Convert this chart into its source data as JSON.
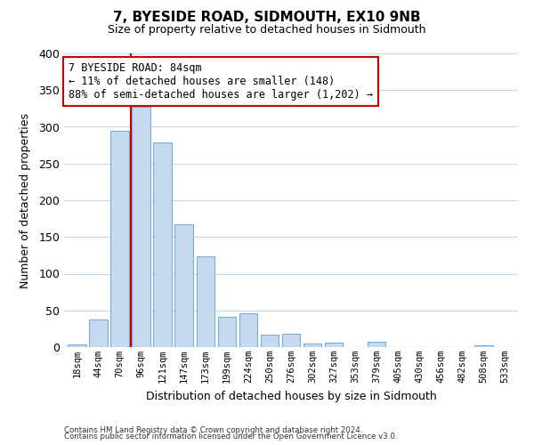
{
  "title": "7, BYESIDE ROAD, SIDMOUTH, EX10 9NB",
  "subtitle": "Size of property relative to detached houses in Sidmouth",
  "xlabel": "Distribution of detached houses by size in Sidmouth",
  "ylabel": "Number of detached properties",
  "bar_labels": [
    "18sqm",
    "44sqm",
    "70sqm",
    "96sqm",
    "121sqm",
    "147sqm",
    "173sqm",
    "199sqm",
    "224sqm",
    "250sqm",
    "276sqm",
    "302sqm",
    "327sqm",
    "353sqm",
    "379sqm",
    "405sqm",
    "430sqm",
    "456sqm",
    "482sqm",
    "508sqm",
    "533sqm"
  ],
  "bar_heights": [
    4,
    37,
    295,
    327,
    279,
    167,
    124,
    41,
    46,
    17,
    18,
    5,
    6,
    0,
    7,
    0,
    0,
    0,
    0,
    2,
    0
  ],
  "bar_color": "#c6d9f0",
  "bar_edge_color": "#7aaed6",
  "vline_color": "#cc0000",
  "annotation_title": "7 BYESIDE ROAD: 84sqm",
  "annotation_line1": "← 11% of detached houses are smaller (148)",
  "annotation_line2": "88% of semi-detached houses are larger (1,202) →",
  "annotation_box_color": "#ffffff",
  "annotation_box_edge": "#cc0000",
  "ylim": [
    0,
    400
  ],
  "yticks": [
    0,
    50,
    100,
    150,
    200,
    250,
    300,
    350,
    400
  ],
  "footnote1": "Contains HM Land Registry data © Crown copyright and database right 2024.",
  "footnote2": "Contains public sector information licensed under the Open Government Licence v3.0.",
  "bg_color": "#ffffff",
  "grid_color": "#c8d8e8"
}
